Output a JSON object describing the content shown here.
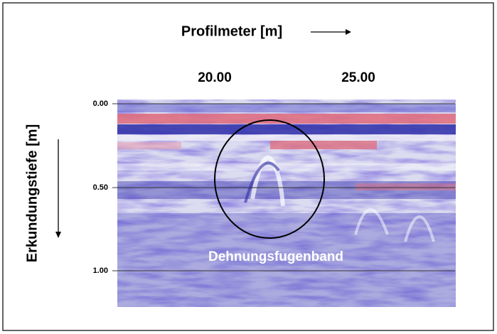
{
  "header": {
    "title": "Profilmeter [m]"
  },
  "x_axis": {
    "ticks": [
      "20.00",
      "25.00"
    ]
  },
  "y_axis": {
    "label": "Erkundungstiefe [m]",
    "ticks": [
      "0.00",
      "0.50",
      "1.00"
    ]
  },
  "annotation": "Dehnungsfugenband"
}
